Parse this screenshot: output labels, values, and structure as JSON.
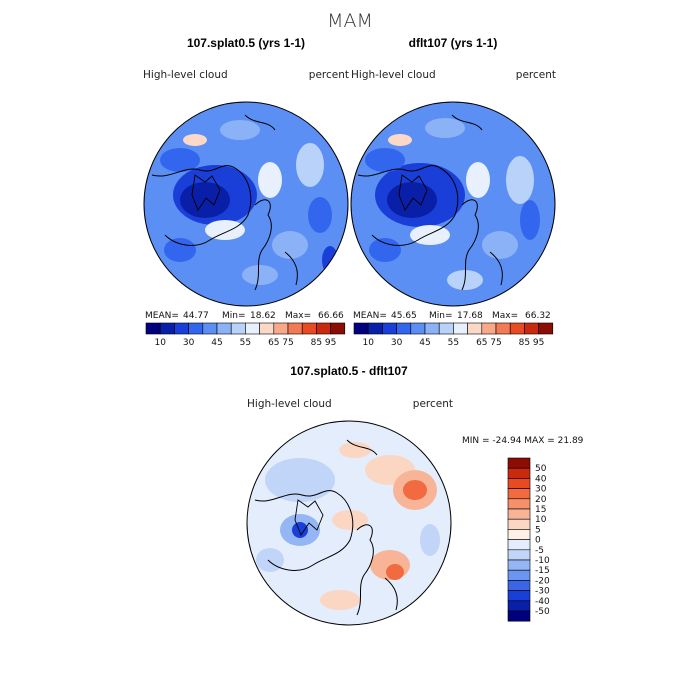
{
  "season": "MAM",
  "panels": [
    {
      "title": "107.splat0.5 (yrs 1-1)",
      "variable": "High-level  cloud",
      "units": "percent",
      "stats": {
        "mean_label": "MEAN=",
        "mean": "44.77",
        "min_label": "Min=",
        "min": "18.62",
        "max_label": "Max=",
        "max": "66.66"
      }
    },
    {
      "title": "dflt107 (yrs 1-1)",
      "variable": "High-level  cloud",
      "units": "percent",
      "stats": {
        "mean_label": "MEAN=",
        "mean": "45.65",
        "min_label": "Min=",
        "min": "17.68",
        "max_label": "Max=",
        "max": "66.32"
      }
    },
    {
      "title": "107.splat0.5 - dflt107",
      "variable": "High-level  cloud",
      "units": "percent",
      "stats_text": "MIN = -24.94  MAX =  21.89"
    }
  ],
  "colorbar_top": {
    "colors": [
      "#00007f",
      "#0a1fa8",
      "#1a3fd8",
      "#3366ee",
      "#5b8ff4",
      "#8bb2f7",
      "#b9d2fa",
      "#e8f0fd",
      "#fbd8c8",
      "#f7a98a",
      "#f27a54",
      "#e84a22",
      "#c92a0d",
      "#8c0d03"
    ],
    "ticks": [
      "10",
      "30",
      "45",
      "55",
      "65",
      "75",
      "85",
      "95"
    ]
  },
  "colorbar_diff": {
    "levels": [
      "50",
      "40",
      "30",
      "20",
      "15",
      "10",
      "5",
      "0",
      "-5",
      "-10",
      "-15",
      "-20",
      "-30",
      "-40",
      "-50"
    ],
    "colors": [
      "#8c0d03",
      "#c92a0d",
      "#e84a22",
      "#f26a3f",
      "#f5906a",
      "#f8b497",
      "#fbd6c2",
      "#fdf0e6",
      "#e4edfb",
      "#c0d5f8",
      "#94b6f4",
      "#6b95f0",
      "#3a66e6",
      "#1a3fd8",
      "#0a1fa8",
      "#00007f"
    ]
  },
  "icons": {
    "map": "north-polar-projection"
  }
}
